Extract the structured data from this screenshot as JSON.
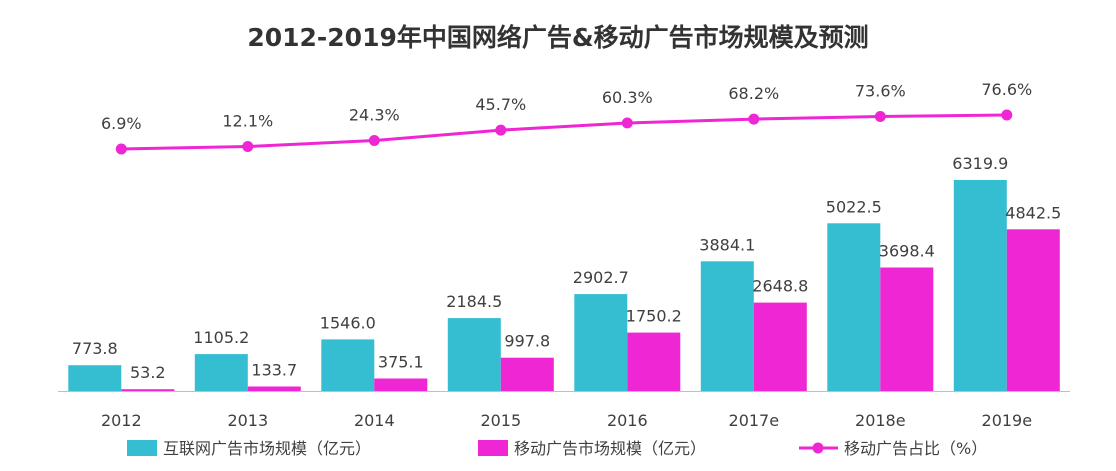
{
  "chart_data": {
    "type": "bar",
    "title": "2012-2019年中国网络广告&移动广告市场规模及预测",
    "categories": [
      "2012",
      "2013",
      "2014",
      "2015",
      "2016",
      "2017e",
      "2018e",
      "2019e"
    ],
    "series": [
      {
        "name": "互联网广告市场规模（亿元）",
        "type": "bar",
        "color": "#35bdd1",
        "values": [
          773.8,
          1105.2,
          1546.0,
          2184.5,
          2902.7,
          3884.1,
          5022.5,
          6319.9
        ],
        "labels": [
          "773.8",
          "1105.2",
          "1546.0",
          "2184.5",
          "2902.7",
          "3884.1",
          "5022.5",
          "6319.9"
        ]
      },
      {
        "name": "移动广告市场规模（亿元）",
        "type": "bar",
        "color": "#ef26d4",
        "values": [
          53.2,
          133.7,
          375.1,
          997.8,
          1750.2,
          2648.8,
          3698.4,
          4842.5
        ],
        "labels": [
          "53.2",
          "133.7",
          "375.1",
          "997.8",
          "1750.2",
          "2648.8",
          "3698.4",
          "4842.5"
        ]
      },
      {
        "name": "移动广告占比（%）",
        "type": "line",
        "color": "#ef26d4",
        "values": [
          6.9,
          12.1,
          24.3,
          45.7,
          60.3,
          68.2,
          73.6,
          76.6
        ],
        "labels": [
          "6.9%",
          "12.1%",
          "24.3%",
          "45.7%",
          "60.3%",
          "68.2%",
          "73.6%",
          "76.6%"
        ]
      }
    ],
    "ylim": [
      0,
      6800
    ],
    "legend_position": "bottom",
    "grid": false
  }
}
